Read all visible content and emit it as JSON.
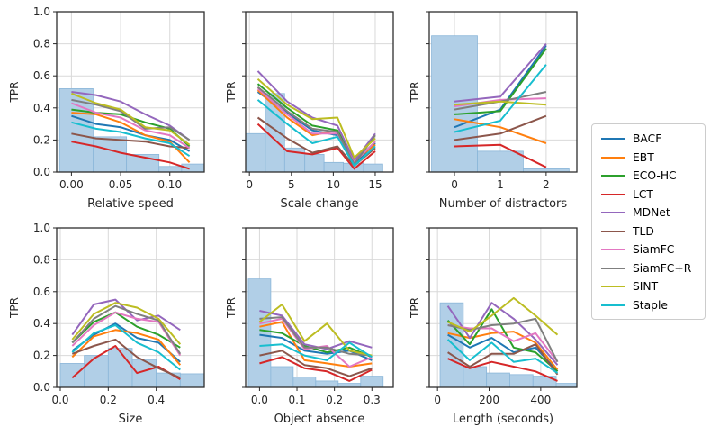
{
  "figure": {
    "ylabel": "TPR",
    "ytick_labels": [
      "0.0",
      "0.2",
      "0.4",
      "0.6",
      "0.8",
      "1.0"
    ],
    "colors": {
      "hist_fill": "#b1cfe7",
      "hist_edge": "#8ab6d9",
      "grid": "#d9d9d9",
      "spine": "#2e2e2e",
      "tick": "#262626"
    }
  },
  "legend": {
    "entries": [
      {
        "label": "BACF",
        "color": "#1f77b4"
      },
      {
        "label": "EBT",
        "color": "#ff7f0e"
      },
      {
        "label": "ECO-HC",
        "color": "#2ca02c"
      },
      {
        "label": "LCT",
        "color": "#d62728"
      },
      {
        "label": "MDNet",
        "color": "#9467bd"
      },
      {
        "label": "TLD",
        "color": "#8c564b"
      },
      {
        "label": "SiamFC",
        "color": "#e377c2"
      },
      {
        "label": "SiamFC+R",
        "color": "#7f7f7f"
      },
      {
        "label": "SINT",
        "color": "#bcbd22"
      },
      {
        "label": "Staple",
        "color": "#17becf"
      }
    ]
  },
  "chart_data": [
    {
      "id": "relative-speed",
      "type": "line",
      "xlabel": "Relative speed",
      "ylabel": "TPR",
      "ylim": [
        0,
        1
      ],
      "yticks": [
        0,
        0.2,
        0.4,
        0.6,
        0.8,
        1.0
      ],
      "show_ytick_labels": true,
      "xlim": [
        -0.015,
        0.135
      ],
      "xticks": [
        0,
        0.05,
        0.1
      ],
      "xtick_labels": [
        "0.00",
        "0.05",
        "0.10"
      ],
      "hist_bars": [
        [
          -0.012,
          0.022,
          0.52
        ],
        [
          0.022,
          0.056,
          0.22
        ],
        [
          0.056,
          0.089,
          0.11
        ],
        [
          0.089,
          0.112,
          0.035
        ],
        [
          0.112,
          0.135,
          0.05
        ]
      ],
      "x": [
        0,
        0.025,
        0.05,
        0.075,
        0.1,
        0.12
      ],
      "series": {
        "BACF": [
          0.35,
          0.3,
          0.28,
          0.23,
          0.2,
          0.13
        ],
        "EBT": [
          0.37,
          0.36,
          0.31,
          0.23,
          0.19,
          0.06
        ],
        "ECO-HC": [
          0.39,
          0.37,
          0.36,
          0.31,
          0.27,
          0.16
        ],
        "LCT": [
          0.19,
          0.16,
          0.12,
          0.09,
          0.06,
          0.02
        ],
        "MDNet": [
          0.5,
          0.48,
          0.44,
          0.36,
          0.29,
          0.2
        ],
        "TLD": [
          0.24,
          0.21,
          0.2,
          0.19,
          0.16,
          0.15
        ],
        "SiamFC": [
          0.43,
          0.37,
          0.34,
          0.26,
          0.23,
          0.15
        ],
        "SiamFC+R": [
          0.45,
          0.42,
          0.38,
          0.27,
          0.28,
          0.2
        ],
        "SINT": [
          0.49,
          0.43,
          0.39,
          0.28,
          0.26,
          0.17
        ],
        "Staple": [
          0.31,
          0.27,
          0.25,
          0.21,
          0.18,
          0.1
        ]
      }
    },
    {
      "id": "scale-change",
      "type": "line",
      "xlabel": "Scale change",
      "ylabel": "TPR",
      "ylim": [
        0,
        1
      ],
      "yticks": [
        0,
        0.2,
        0.4,
        0.6,
        0.8,
        1.0
      ],
      "show_ytick_labels": false,
      "xlim": [
        -0.45,
        17.15
      ],
      "xticks": [
        0,
        5,
        10,
        15
      ],
      "xtick_labels": [
        "0",
        "5",
        "10",
        "15"
      ],
      "hist_bars": [
        [
          -0.45,
          1.9,
          0.24
        ],
        [
          1.9,
          4.2,
          0.49
        ],
        [
          4.2,
          6.6,
          0.15
        ],
        [
          6.6,
          8.9,
          0.11
        ],
        [
          8.9,
          11.2,
          0.06
        ],
        [
          11.2,
          13.6,
          0.055
        ],
        [
          13.6,
          15.9,
          0.05
        ]
      ],
      "x": [
        1,
        4.5,
        7.5,
        10.5,
        12.5,
        15
      ],
      "series": {
        "BACF": [
          0.5,
          0.37,
          0.26,
          0.23,
          0.05,
          0.18
        ],
        "EBT": [
          0.51,
          0.34,
          0.23,
          0.26,
          0.07,
          0.17
        ],
        "ECO-HC": [
          0.55,
          0.4,
          0.29,
          0.26,
          0.06,
          0.19
        ],
        "LCT": [
          0.3,
          0.13,
          0.11,
          0.15,
          0.02,
          0.13
        ],
        "MDNet": [
          0.63,
          0.44,
          0.34,
          0.29,
          0.07,
          0.24
        ],
        "TLD": [
          0.34,
          0.21,
          0.12,
          0.16,
          0.04,
          0.15
        ],
        "SiamFC": [
          0.52,
          0.36,
          0.24,
          0.24,
          0.06,
          0.19
        ],
        "SiamFC+R": [
          0.53,
          0.38,
          0.27,
          0.25,
          0.05,
          0.23
        ],
        "SINT": [
          0.58,
          0.42,
          0.33,
          0.34,
          0.09,
          0.21
        ],
        "Staple": [
          0.45,
          0.3,
          0.18,
          0.22,
          0.04,
          0.16
        ]
      }
    },
    {
      "id": "number-of-distractors",
      "type": "line",
      "xlabel": "Number of distractors",
      "ylabel": "TPR",
      "ylim": [
        0,
        1
      ],
      "yticks": [
        0,
        0.2,
        0.4,
        0.6,
        0.8,
        1.0
      ],
      "show_ytick_labels": false,
      "xlim": [
        -0.55,
        2.67
      ],
      "xticks": [
        0,
        1,
        2
      ],
      "xtick_labels": [
        "0",
        "1",
        "2"
      ],
      "hist_bars": [
        [
          -0.5,
          0.5,
          0.85
        ],
        [
          0.5,
          1.5,
          0.13
        ],
        [
          1.5,
          2.5,
          0.02
        ]
      ],
      "x": [
        0,
        1,
        2
      ],
      "series": {
        "BACF": [
          0.28,
          0.39,
          0.79
        ],
        "EBT": [
          0.33,
          0.28,
          0.18
        ],
        "ECO-HC": [
          0.36,
          0.38,
          0.77
        ],
        "LCT": [
          0.16,
          0.17,
          0.03
        ],
        "MDNet": [
          0.44,
          0.47,
          0.8
        ],
        "TLD": [
          0.2,
          0.24,
          0.35
        ],
        "SiamFC": [
          0.41,
          0.45,
          0.46
        ],
        "SiamFC+R": [
          0.39,
          0.44,
          0.5
        ],
        "SINT": [
          0.42,
          0.44,
          0.42
        ],
        "Staple": [
          0.25,
          0.32,
          0.67
        ]
      }
    },
    {
      "id": "size",
      "type": "line",
      "xlabel": "Size",
      "ylabel": "TPR",
      "ylim": [
        0,
        1
      ],
      "yticks": [
        0,
        0.2,
        0.4,
        0.6,
        0.8,
        1.0
      ],
      "show_ytick_labels": true,
      "xlim": [
        -0.015,
        0.6
      ],
      "xticks": [
        0,
        0.2,
        0.4
      ],
      "xtick_labels": [
        "0.0",
        "0.2",
        "0.4"
      ],
      "hist_bars": [
        [
          0,
          0.1,
          0.15
        ],
        [
          0.1,
          0.2,
          0.2
        ],
        [
          0.2,
          0.3,
          0.245
        ],
        [
          0.3,
          0.4,
          0.175
        ],
        [
          0.4,
          0.5,
          0.09
        ],
        [
          0.5,
          0.6,
          0.085
        ]
      ],
      "x": [
        0.05,
        0.14,
        0.23,
        0.32,
        0.41,
        0.5
      ],
      "series": {
        "BACF": [
          0.23,
          0.33,
          0.4,
          0.31,
          0.28,
          0.16
        ],
        "EBT": [
          0.19,
          0.32,
          0.36,
          0.34,
          0.3,
          0.14
        ],
        "ECO-HC": [
          0.28,
          0.41,
          0.47,
          0.38,
          0.33,
          0.25
        ],
        "LCT": [
          0.06,
          0.18,
          0.26,
          0.09,
          0.13,
          0.05
        ],
        "MDNet": [
          0.33,
          0.52,
          0.55,
          0.42,
          0.45,
          0.36
        ],
        "TLD": [
          0.21,
          0.26,
          0.3,
          0.19,
          0.12,
          0.06
        ],
        "SiamFC": [
          0.26,
          0.39,
          0.47,
          0.43,
          0.41,
          0.2
        ],
        "SiamFC+R": [
          0.28,
          0.43,
          0.51,
          0.46,
          0.42,
          0.21
        ],
        "SINT": [
          0.3,
          0.46,
          0.53,
          0.5,
          0.43,
          0.27
        ],
        "Staple": [
          0.22,
          0.34,
          0.39,
          0.28,
          0.22,
          0.11
        ]
      }
    },
    {
      "id": "object-absence",
      "type": "line",
      "xlabel": "Object absence",
      "ylabel": "TPR",
      "ylim": [
        0,
        1
      ],
      "yticks": [
        0,
        0.2,
        0.4,
        0.6,
        0.8,
        1.0
      ],
      "show_ytick_labels": false,
      "xlim": [
        -0.037,
        0.357
      ],
      "xticks": [
        0,
        0.1,
        0.2,
        0.3
      ],
      "xtick_labels": [
        "0.0",
        "0.1",
        "0.2",
        "0.3"
      ],
      "hist_bars": [
        [
          -0.03,
          0.03,
          0.68
        ],
        [
          0.03,
          0.09,
          0.13
        ],
        [
          0.09,
          0.15,
          0.065
        ],
        [
          0.15,
          0.21,
          0.04
        ],
        [
          0.21,
          0.27,
          0.025
        ],
        [
          0.27,
          0.33,
          0.07
        ]
      ],
      "x": [
        0,
        0.06,
        0.12,
        0.18,
        0.24,
        0.3
      ],
      "series": {
        "BACF": [
          0.33,
          0.31,
          0.23,
          0.21,
          0.23,
          0.17
        ],
        "EBT": [
          0.38,
          0.41,
          0.17,
          0.15,
          0.13,
          0.15
        ],
        "ECO-HC": [
          0.36,
          0.34,
          0.26,
          0.22,
          0.25,
          0.19
        ],
        "LCT": [
          0.15,
          0.19,
          0.12,
          0.1,
          0.04,
          0.11
        ],
        "MDNet": [
          0.48,
          0.45,
          0.27,
          0.24,
          0.29,
          0.25
        ],
        "TLD": [
          0.2,
          0.23,
          0.14,
          0.12,
          0.07,
          0.12
        ],
        "SiamFC": [
          0.4,
          0.43,
          0.24,
          0.26,
          0.13,
          0.19
        ],
        "SiamFC+R": [
          0.43,
          0.44,
          0.25,
          0.25,
          0.21,
          0.2
        ],
        "SINT": [
          0.41,
          0.52,
          0.29,
          0.4,
          0.23,
          0.2
        ],
        "Staple": [
          0.26,
          0.27,
          0.2,
          0.17,
          0.28,
          0.19
        ]
      }
    },
    {
      "id": "length-seconds",
      "type": "line",
      "xlabel": "Length (seconds)",
      "ylabel": "TPR",
      "ylim": [
        0,
        1
      ],
      "yticks": [
        0,
        0.2,
        0.4,
        0.6,
        0.8,
        1.0
      ],
      "show_ytick_labels": false,
      "xlim": [
        -32,
        540
      ],
      "xticks": [
        0,
        200,
        400
      ],
      "xtick_labels": [
        "0",
        "200",
        "400"
      ],
      "hist_bars": [
        [
          10,
          100,
          0.53
        ],
        [
          100,
          190,
          0.13
        ],
        [
          190,
          280,
          0.09
        ],
        [
          280,
          370,
          0.08
        ],
        [
          370,
          460,
          0.07
        ],
        [
          460,
          540,
          0.025
        ]
      ],
      "x": [
        40,
        125,
        210,
        295,
        380,
        465
      ],
      "series": {
        "BACF": [
          0.33,
          0.25,
          0.31,
          0.22,
          0.25,
          0.1
        ],
        "EBT": [
          0.34,
          0.31,
          0.34,
          0.35,
          0.28,
          0.11
        ],
        "ECO-HC": [
          0.42,
          0.27,
          0.49,
          0.25,
          0.22,
          0.1
        ],
        "LCT": [
          0.18,
          0.12,
          0.16,
          0.13,
          0.1,
          0.04
        ],
        "MDNet": [
          0.51,
          0.31,
          0.53,
          0.43,
          0.3,
          0.14
        ],
        "TLD": [
          0.22,
          0.13,
          0.21,
          0.21,
          0.27,
          0.08
        ],
        "SiamFC": [
          0.39,
          0.37,
          0.37,
          0.29,
          0.34,
          0.16
        ],
        "SiamFC+R": [
          0.39,
          0.36,
          0.39,
          0.4,
          0.43,
          0.16
        ],
        "SINT": [
          0.41,
          0.35,
          0.45,
          0.56,
          0.45,
          0.33
        ],
        "Staple": [
          0.3,
          0.17,
          0.28,
          0.16,
          0.18,
          0.09
        ]
      }
    }
  ]
}
